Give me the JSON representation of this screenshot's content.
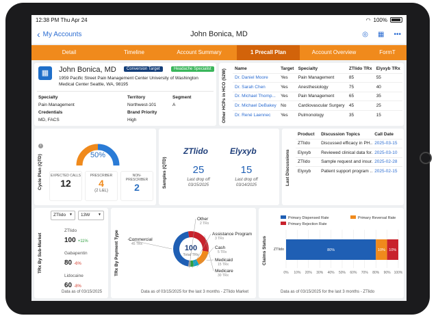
{
  "status": {
    "time": "12:38 PM",
    "date": "Thu Apr 24",
    "battery": "100%"
  },
  "nav": {
    "back_label": "My Accounts",
    "title": "John Bonica, MD"
  },
  "tabs": [
    "Detail",
    "Timeline",
    "Account Summary",
    "1 Precall Plan",
    "Account Overview",
    "FormT"
  ],
  "profile": {
    "name": "John Bonica, MD",
    "tag1": "Conversion Target",
    "tag2": "Headache Specialist",
    "address": "1959 Pacific Street Pain Management Center University of Washington Medical Center Seattle, WA, 98195",
    "specialty_label": "Specialty",
    "specialty": "Pain Management",
    "territory_label": "Territory",
    "territory": "Northwest-101",
    "segment_label": "Segment",
    "segment": "A",
    "credentials_label": "Credentials",
    "credentials": "MD, FACS",
    "brand_priority_label": "Brand Priority",
    "brand_priority": "High"
  },
  "hcps": {
    "title": "Other HCPs in HCO (52W)",
    "headers": [
      "Name",
      "Target",
      "Specialty",
      "ZTlido TRx",
      "Elyxyb TRx"
    ],
    "rows": [
      [
        "Dr. Daniel Moore",
        "Yes",
        "Pain Management",
        "85",
        "55"
      ],
      [
        "Dr. Sarah Chen",
        "Yes",
        "Anesthesiology",
        "75",
        "40"
      ],
      [
        "Dr. Michael Thomp...",
        "Yes",
        "Pain Management",
        "65",
        "35"
      ],
      [
        "Dr. Michael DeBakey",
        "No",
        "Cardiovascular Surgery",
        "45",
        "25"
      ],
      [
        "Dr. René Laennec",
        "Yes",
        "Pulmonology",
        "35",
        "15"
      ]
    ]
  },
  "cycle": {
    "title": "Cycle Plan (QTD)",
    "percent": "50%",
    "percent_value": 0.5,
    "expected_label": "EXPECTED CALLS",
    "expected": "12",
    "prescriber_label": "PRESCRIBER",
    "prescriber": "4",
    "prescriber_sub": "(2 L&L)",
    "nonprescriber_label": "NON-PRESCRIBER",
    "nonprescriber": "2"
  },
  "samples": {
    "title": "Samples (QTD)",
    "brand1": "ZTlido",
    "count1": "25",
    "drop_label1": "Last drop off",
    "date1": "03/15/2025",
    "brand2": "Elyxyb",
    "count2": "15",
    "drop_label2": "Last drop off",
    "date2": "03/14/2025"
  },
  "discussions": {
    "title": "Last Discussions",
    "headers": [
      "Product",
      "Discussion Topics",
      "Call Date"
    ],
    "rows": [
      [
        "ZTlido",
        "Discussed efficacy in PH...",
        "2025-03-15"
      ],
      [
        "Elyxyb",
        "Reviewed clinical data for...",
        "2025-03-10"
      ],
      [
        "ZTlido",
        "Sample request and insur...",
        "2025-02-28"
      ],
      [
        "Elyxyb",
        "Patient support program ...",
        "2025-02-15"
      ]
    ]
  },
  "trx_market": {
    "title": "TRx By Sub-Market",
    "select1": "ZTlido",
    "select2": "13W",
    "items": [
      {
        "name": "ZTlido",
        "value": "100",
        "change": "+11%",
        "color": "#2e9e3e"
      },
      {
        "name": "Gabapentin",
        "value": "80",
        "change": "-6%",
        "color": "#d23a2a"
      },
      {
        "name": "Lidocaine",
        "value": "60",
        "change": "-8%",
        "color": "#d23a2a"
      }
    ],
    "footer": "Data as of 03/15/2025"
  },
  "trx_payment": {
    "title": "TRx By Payment Type",
    "center_value": "100",
    "center_label": "Total TRx",
    "footer": "Data as of 03/15/2025 for the last 3 months - ZTlido Market",
    "chart_data": {
      "type": "pie",
      "slices": [
        {
          "label": "Commercial",
          "sub": "45 TRx",
          "value": 45,
          "color": "#1f5fb4"
        },
        {
          "label": "Medicare",
          "sub": "30 TRx",
          "value": 30,
          "color": "#c8222c"
        },
        {
          "label": "Medicaid",
          "sub": "15 TRx",
          "value": 15,
          "color": "#f08a1c"
        },
        {
          "label": "Cash",
          "sub": "5 TRx",
          "value": 5,
          "color": "#18a3c4"
        },
        {
          "label": "Assistance Program",
          "sub": "3 TRx",
          "value": 3,
          "color": "#2e9e3e"
        },
        {
          "label": "Other",
          "sub": "2 TRx",
          "value": 2,
          "color": "#9b9b9b"
        }
      ]
    }
  },
  "claims": {
    "title": "Claims Status",
    "footer": "Data as of 03/15/2025 for the last 3 months - ZTlido",
    "chart_data": {
      "type": "bar",
      "categories": [
        "ZTlido"
      ],
      "series": [
        {
          "name": "Primary Dispensed Rate",
          "values": [
            80
          ],
          "color": "#1f5fb4"
        },
        {
          "name": "Primary Reversal Rate",
          "values": [
            10
          ],
          "color": "#f08a1c"
        },
        {
          "name": "Primary Rejection Rate",
          "values": [
            10
          ],
          "color": "#c8222c"
        }
      ],
      "xticks": [
        "0%",
        "10%",
        "20%",
        "30%",
        "40%",
        "50%",
        "60%",
        "70%",
        "80%",
        "90%",
        "100%"
      ],
      "xlim": [
        0,
        100
      ],
      "data_labels": [
        "80%",
        "10%",
        "10%"
      ]
    }
  }
}
